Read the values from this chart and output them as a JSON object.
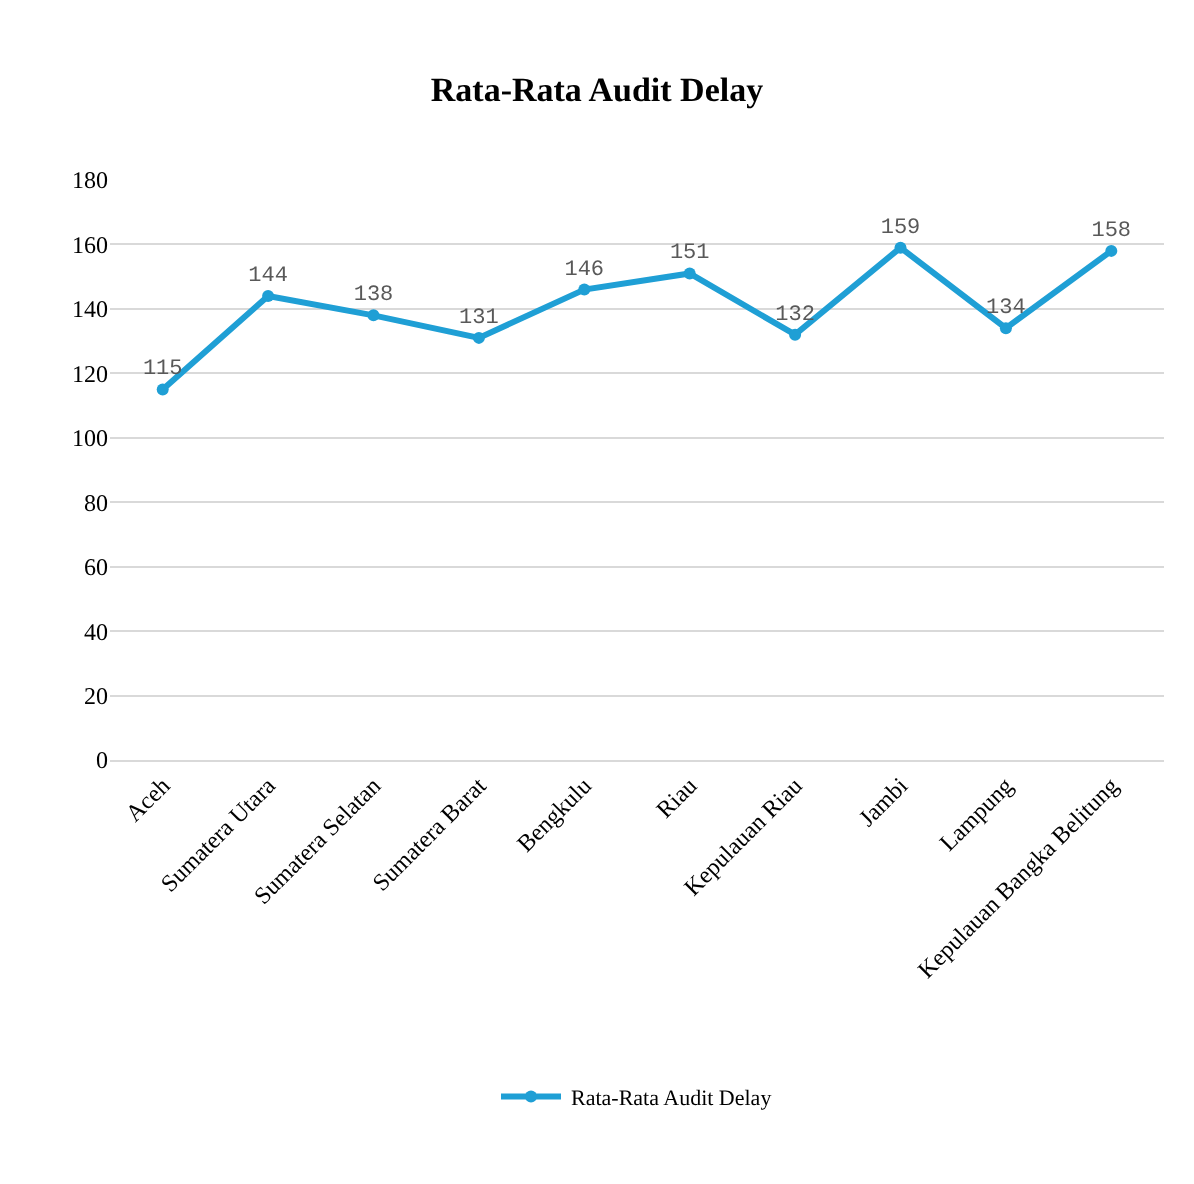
{
  "chart_data": {
    "type": "line",
    "title": "Rata-Rata Audit Delay",
    "categories": [
      "Aceh",
      "Sumatera Utara",
      "Sumatera Selatan",
      "Sumatera Barat",
      "Bengkulu",
      "Riau",
      "Kepulauan Riau",
      "Jambi",
      "Lampung",
      "Kepulauan Bangka Belitung"
    ],
    "series": [
      {
        "name": "Rata-Rata Audit Delay",
        "color": "#1f9fd5",
        "values": [
          115,
          144,
          138,
          131,
          146,
          151,
          132,
          159,
          134,
          158
        ]
      }
    ],
    "ylim": [
      0,
      180
    ],
    "yticks": [
      0,
      20,
      40,
      60,
      80,
      100,
      120,
      140,
      160,
      180
    ],
    "grid": "y",
    "legend": "bottom",
    "marker": "circle",
    "line_style": "solid",
    "data_labels": true
  }
}
